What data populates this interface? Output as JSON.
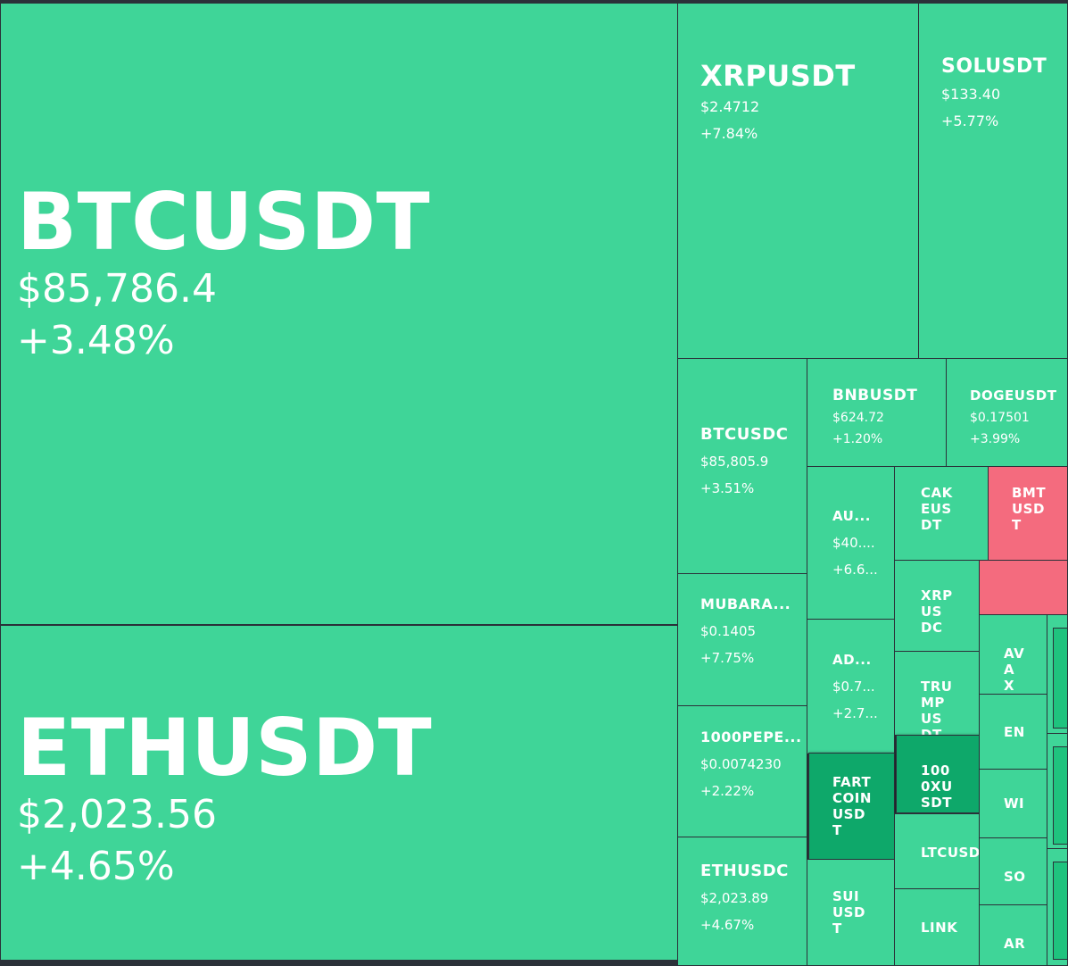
{
  "colors": {
    "background": "#2b3139",
    "up_light": "#3fd598",
    "up_strong": "#0ea86a",
    "up_mid": "#1fc37e",
    "down_light": "#f46b7e",
    "text": "#ffffff"
  },
  "tiles": [
    {
      "symbol": "BTCUSDT",
      "price": "$85,786.4",
      "change": "+3.48%"
    },
    {
      "symbol": "ETHUSDT",
      "price": "$2,023.56",
      "change": "+4.65%"
    },
    {
      "symbol": "XRPUSDT",
      "price": "$2.4712",
      "change": "+7.84%"
    },
    {
      "symbol": "SOLUSDT",
      "price": "$133.40",
      "change": "+5.77%"
    },
    {
      "symbol": "BTCUSDC",
      "price": "$85,805.9",
      "change": "+3.51%"
    },
    {
      "symbol": "BNBUSDT",
      "price": "$624.72",
      "change": "+1.20%"
    },
    {
      "symbol": "DOGEUSDT",
      "price": "$0.17501",
      "change": "+3.99%"
    },
    {
      "symbol": "MUBARA...",
      "price": "$0.1405",
      "change": "+7.75%"
    },
    {
      "symbol": "1000PEPE...",
      "price": "$0.0074230",
      "change": "+2.22%"
    },
    {
      "symbol": "ETHUSDC",
      "price": "$2,023.89",
      "change": "+4.67%"
    },
    {
      "symbol": "AU...",
      "price": "$40....",
      "change": "+6.6..."
    },
    {
      "symbol": "AD...",
      "price": "$0.7...",
      "change": "+2.7..."
    },
    {
      "symbol": "FARTCOINUSDT"
    },
    {
      "symbol": "SUIUSDT"
    },
    {
      "symbol": "CAKEUSDT"
    },
    {
      "symbol": "XRPUSDC"
    },
    {
      "symbol": "TRUMPUSDT"
    },
    {
      "symbol": "1000XUSDT"
    },
    {
      "symbol": "LTCUSDT"
    },
    {
      "symbol": "LINK"
    },
    {
      "symbol": "BMTUSDT"
    },
    {
      "symbol": "AVAX"
    },
    {
      "symbol": "EN"
    },
    {
      "symbol": "WI"
    },
    {
      "symbol": "SO"
    },
    {
      "symbol": "AR"
    }
  ]
}
